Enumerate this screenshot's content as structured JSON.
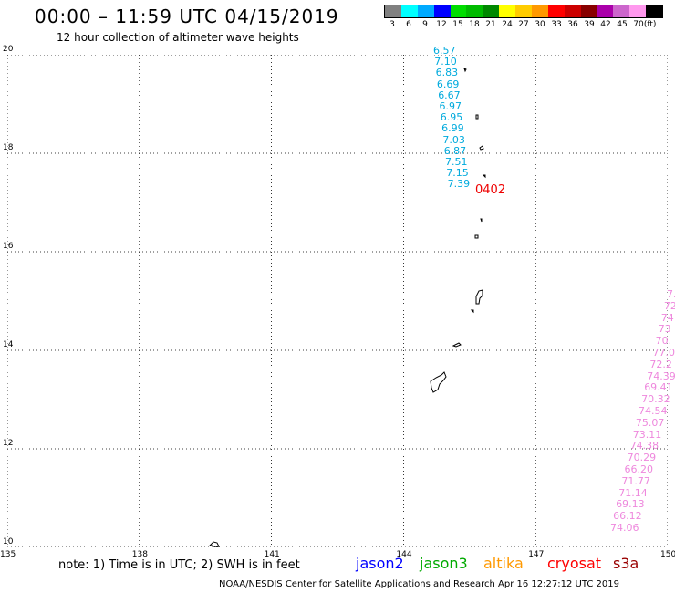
{
  "header": {
    "title": "00:00 – 11:59 UTC 04/15/2019",
    "subtitle": "12 hour collection of altimeter wave heights"
  },
  "legend": {
    "swatches": [
      {
        "color": "#808080",
        "label": "3"
      },
      {
        "color": "#00ffff",
        "label": "6"
      },
      {
        "color": "#00aaff",
        "label": "9"
      },
      {
        "color": "#0000ff",
        "label": "12"
      },
      {
        "color": "#00dd00",
        "label": "15"
      },
      {
        "color": "#00bb00",
        "label": "18"
      },
      {
        "color": "#008800",
        "label": "21"
      },
      {
        "color": "#ffff00",
        "label": "24"
      },
      {
        "color": "#ffcc00",
        "label": "27"
      },
      {
        "color": "#ff9900",
        "label": "30"
      },
      {
        "color": "#ff0000",
        "label": "33"
      },
      {
        "color": "#cc0000",
        "label": "36"
      },
      {
        "color": "#880000",
        "label": "39"
      },
      {
        "color": "#aa00aa",
        "label": "42"
      },
      {
        "color": "#cc66cc",
        "label": "45"
      },
      {
        "color": "#ff99ee",
        "label": "70"
      },
      {
        "color": "#000000",
        "label": ""
      }
    ],
    "unit_label": "(ft)"
  },
  "map": {
    "lon_ticks": [
      "135",
      "138",
      "141",
      "144",
      "147",
      "150"
    ],
    "lat_ticks": [
      "20",
      "18",
      "16",
      "14",
      "12",
      "10"
    ],
    "lon_range": [
      135,
      150
    ],
    "lat_range": [
      10,
      20
    ],
    "grid": "dotted"
  },
  "track_jason3": {
    "color": "#00aadd",
    "values": [
      "6.57",
      "7.10",
      "6.83",
      "6.69",
      "6.67",
      "6.97",
      "6.95",
      "6.99",
      "7.03",
      "6.87",
      "7.51",
      "7.15",
      "7.39"
    ]
  },
  "track_time_label": {
    "text": "0402",
    "color": "#ee0000"
  },
  "track_s3a": {
    "color": "#ee88dd",
    "values": [
      "7.",
      "72",
      "74",
      "73",
      "70.",
      "77.0",
      "72.2",
      "74.39",
      "69.41",
      "70.32",
      "74.54",
      "75.07",
      "73.11",
      "74.38",
      "70.29",
      "66.20",
      "71.77",
      "71.14",
      "69.13",
      "66.12",
      "74.06"
    ]
  },
  "footer": {
    "note": "note: 1) Time is in UTC; 2) SWH is in feet",
    "satellites": [
      {
        "name": "jason2",
        "color": "#0000ff"
      },
      {
        "name": "jason3",
        "color": "#00aa00"
      },
      {
        "name": "altika",
        "color": "#ff9900"
      },
      {
        "name": "cryosat",
        "color": "#ff0000"
      },
      {
        "name": "s3a",
        "color": "#990000"
      }
    ],
    "credit": "NOAA/NESDIS Center for Satellite Applications and Research   Apr 16 12:27:12 UTC 2019"
  }
}
